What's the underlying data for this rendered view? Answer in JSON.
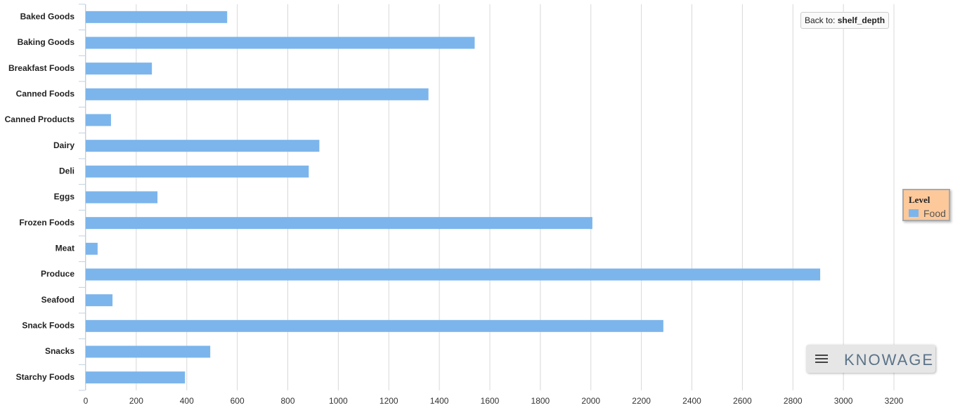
{
  "chart_data": {
    "type": "bar",
    "orientation": "horizontal",
    "categories": [
      "Baked Goods",
      "Baking Goods",
      "Breakfast Foods",
      "Canned Foods",
      "Canned Products",
      "Dairy",
      "Deli",
      "Eggs",
      "Frozen Foods",
      "Meat",
      "Produce",
      "Seafood",
      "Snack Foods",
      "Snacks",
      "Starchy Foods"
    ],
    "series": [
      {
        "name": "Food",
        "color": "#7cb5ec",
        "values": [
          560,
          1540,
          262,
          1357,
          100,
          925,
          883,
          284,
          2006,
          47,
          2908,
          106,
          2287,
          493,
          393
        ]
      }
    ],
    "xlim": [
      0,
      3200
    ],
    "xticks": [
      0,
      200,
      400,
      600,
      800,
      1000,
      1200,
      1400,
      1600,
      1800,
      2000,
      2200,
      2400,
      2600,
      2800,
      3000,
      3200
    ],
    "grid": true,
    "legend_title": "Level",
    "legend_position": "right"
  },
  "back_button": {
    "prefix": "Back to:",
    "target": "shelf_depth"
  },
  "logo": "KNOWAGE"
}
